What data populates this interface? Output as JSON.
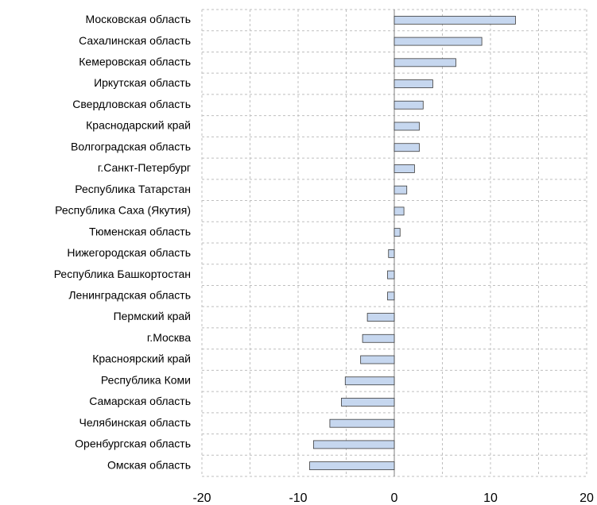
{
  "chart_data": {
    "type": "barh",
    "categories": [
      "Московская область",
      "Сахалинская область",
      "Кемеровская область",
      "Иркутская область",
      "Свердловская область",
      "Краснодарский край",
      "Волгоградская область",
      "г.Санкт-Петербург",
      "Республика Татарстан",
      "Республика Саха (Якутия)",
      "Тюменская область",
      "Нижегородская область",
      "Республика Башкортостан",
      "Ленинградская область",
      "Пермский край",
      "г.Москва",
      "Красноярский край",
      "Республика Коми",
      "Самарская область",
      "Челябинская область",
      "Оренбургская область",
      "Омская область"
    ],
    "values": [
      12.6,
      9.1,
      6.4,
      4.0,
      3.0,
      2.6,
      2.6,
      2.1,
      1.3,
      1.0,
      0.6,
      -0.6,
      -0.7,
      -0.7,
      -2.8,
      -3.3,
      -3.5,
      -5.1,
      -5.5,
      -6.7,
      -8.4,
      -8.8
    ],
    "color": "#c6d7ef",
    "xlim": [
      -20,
      20
    ],
    "xticks": [
      -20,
      -10,
      0,
      10,
      20
    ],
    "minor_xticks": [
      -15,
      -5,
      5,
      15
    ],
    "grid": true
  }
}
